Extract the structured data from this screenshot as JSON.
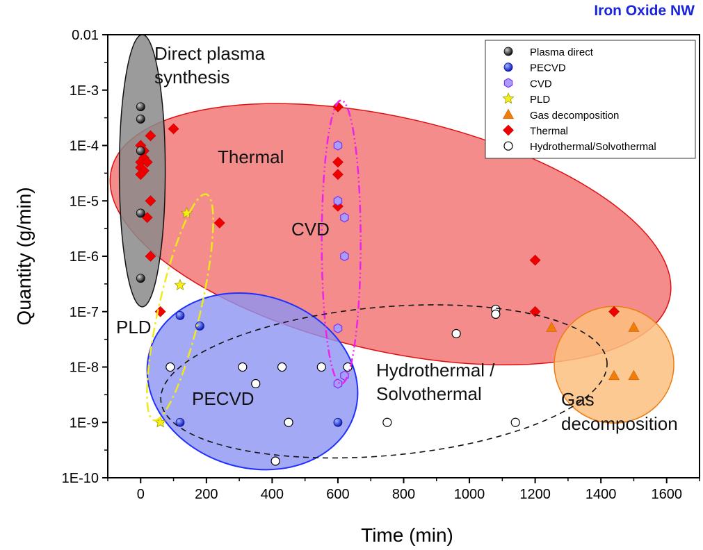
{
  "chart_data": {
    "type": "scatter",
    "title": "Iron Oxide NW",
    "xlabel": "Time (min)",
    "ylabel": "Quantity (g/min)",
    "xlim": [
      -100,
      1700
    ],
    "ylim": [
      1e-10,
      0.01
    ],
    "yscale": "log",
    "x_ticks": [
      0,
      200,
      400,
      600,
      800,
      1000,
      1200,
      1400,
      1600
    ],
    "x_tick_labels": [
      "0",
      "200",
      "400",
      "600",
      "800",
      "1000",
      "1200",
      "1400",
      "1600"
    ],
    "y_ticks": [
      1e-10,
      1e-09,
      1e-08,
      1e-07,
      1e-06,
      1e-05,
      0.0001,
      0.001,
      0.01
    ],
    "y_tick_labels": [
      "1E-10",
      "1E-9",
      "1E-8",
      "1E-7",
      "1E-6",
      "1E-5",
      "1E-4",
      "1E-3",
      "0.01"
    ],
    "grid": false,
    "legend_position": "top-right",
    "series": [
      {
        "name": "Plasma direct",
        "marker": "black-sphere",
        "color": "#111111",
        "points": [
          [
            0,
            0.0005
          ],
          [
            0,
            0.0003
          ],
          [
            0,
            8e-05
          ],
          [
            0,
            6e-06
          ],
          [
            0,
            4e-07
          ]
        ]
      },
      {
        "name": "PECVD",
        "marker": "blue-sphere",
        "color": "#1428d6",
        "points": [
          [
            120,
            8.5e-08
          ],
          [
            180,
            5.5e-08
          ],
          [
            120,
            1e-09
          ],
          [
            600,
            1e-09
          ]
        ]
      },
      {
        "name": "CVD",
        "marker": "hexagon",
        "color": "#8a7cf0",
        "points": [
          [
            600,
            0.0001
          ],
          [
            600,
            1e-05
          ],
          [
            620,
            5e-06
          ],
          [
            620,
            1e-06
          ],
          [
            600,
            5e-08
          ],
          [
            600,
            5e-09
          ],
          [
            620,
            7e-09
          ]
        ]
      },
      {
        "name": "PLD",
        "marker": "star",
        "color": "#f5f019",
        "points": [
          [
            140,
            6e-06
          ],
          [
            120,
            3e-07
          ],
          [
            60,
            1e-09
          ]
        ]
      },
      {
        "name": "Gas decomposition",
        "marker": "triangle",
        "color": "#f07c0a",
        "points": [
          [
            1250,
            5.2e-08
          ],
          [
            1500,
            5.2e-08
          ],
          [
            1440,
            7e-09
          ],
          [
            1500,
            7e-09
          ]
        ]
      },
      {
        "name": "Thermal",
        "marker": "diamond",
        "color": "#ee0000",
        "points": [
          [
            0,
            0.0001
          ],
          [
            10,
            8e-05
          ],
          [
            10,
            6e-05
          ],
          [
            0,
            5e-05
          ],
          [
            20,
            5e-05
          ],
          [
            0,
            4e-05
          ],
          [
            10,
            3.5e-05
          ],
          [
            0,
            3e-05
          ],
          [
            30,
            0.00015
          ],
          [
            100,
            0.0002
          ],
          [
            30,
            1e-05
          ],
          [
            20,
            5e-06
          ],
          [
            30,
            1e-06
          ],
          [
            60,
            1e-07
          ],
          [
            240,
            4e-06
          ],
          [
            600,
            0.0005
          ],
          [
            600,
            5e-05
          ],
          [
            600,
            3e-05
          ],
          [
            600,
            8e-06
          ],
          [
            1200,
            8.5e-07
          ],
          [
            1200,
            1e-07
          ],
          [
            1440,
            1e-07
          ]
        ]
      },
      {
        "name": "Hydrothermal/Solvothermal",
        "marker": "open-circle",
        "color": "#ffffff",
        "points": [
          [
            90,
            1e-08
          ],
          [
            310,
            1e-08
          ],
          [
            430,
            1e-08
          ],
          [
            550,
            1e-08
          ],
          [
            630,
            1e-08
          ],
          [
            350,
            5e-09
          ],
          [
            450,
            1e-09
          ],
          [
            750,
            1e-09
          ],
          [
            410,
            2e-10
          ],
          [
            960,
            4e-08
          ],
          [
            1080,
            1.1e-07
          ],
          [
            1080,
            9e-08
          ],
          [
            1140,
            1e-09
          ]
        ]
      }
    ],
    "regions": [
      {
        "label": "Thermal",
        "color": "#f26666"
      },
      {
        "label": "Direct plasma synthesis",
        "color": "#8a8a8a"
      },
      {
        "label": "PECVD",
        "color": "#8d93f2"
      },
      {
        "label": "Gas decomposition",
        "color": "#fbbf7f"
      },
      {
        "label": "CVD",
        "color": "#ee22ee"
      },
      {
        "label": "PLD",
        "color": "#f0ea1a"
      },
      {
        "label": "Hydrothermal / Solvothermal",
        "color": "#111111"
      }
    ],
    "annotations": [
      {
        "text": "Direct plasma"
      },
      {
        "text": "synthesis"
      },
      {
        "text": "Thermal"
      },
      {
        "text": "CVD"
      },
      {
        "text": "PLD"
      },
      {
        "text": "PECVD"
      },
      {
        "text": "Hydrothermal /"
      },
      {
        "text": "Solvothermal"
      },
      {
        "text": "Gas"
      },
      {
        "text": "decomposition"
      }
    ]
  }
}
